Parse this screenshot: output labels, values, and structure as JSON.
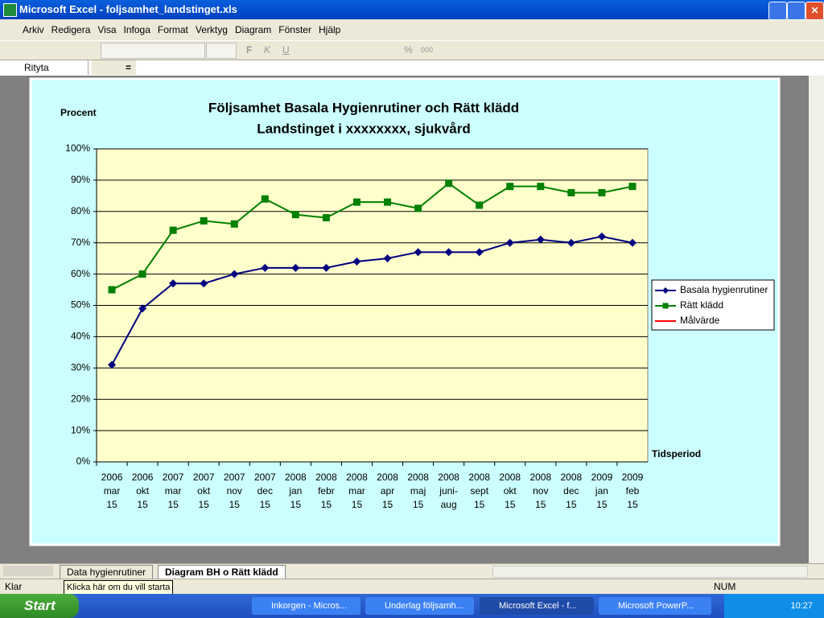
{
  "window_title": "Microsoft Excel - foljsamhet_landstinget.xls",
  "menu": [
    "Arkiv",
    "Redigera",
    "Visa",
    "Infoga",
    "Format",
    "Verktyg",
    "Diagram",
    "Fönster",
    "Hjälp"
  ],
  "toolbar": {
    "buttons": [
      "F",
      "K",
      "U",
      "%",
      "000"
    ]
  },
  "formula_bar": {
    "name_box": "Rityta",
    "equals": "="
  },
  "sheet_tabs": [
    "Data hygienrutiner",
    "Diagram BH o Rätt klädd"
  ],
  "status_bar": {
    "ready": "Klar",
    "num": "NUM"
  },
  "tooltip": "Klicka här om du vill starta",
  "taskbar": {
    "start": "Start",
    "items": [
      "Inkorgen - Micros...",
      "Underlag följsamh...",
      "Microsoft Excel - f...",
      "Microsoft PowerP..."
    ],
    "clock": "10:27"
  },
  "chart_data": {
    "type": "line",
    "title": [
      "Följsamhet Basala Hygienrutiner och Rätt klädd",
      "Landstinget i xxxxxxxx, sjukvård"
    ],
    "y_label": "Procent",
    "x_label": "Tidsperiod",
    "categories": [
      [
        "2006",
        "mar",
        "15"
      ],
      [
        "2006",
        "okt",
        "15"
      ],
      [
        "2007",
        "mar",
        "15"
      ],
      [
        "2007",
        "okt",
        "15"
      ],
      [
        "2007",
        "nov",
        "15"
      ],
      [
        "2007",
        "dec",
        "15"
      ],
      [
        "2008",
        "jan",
        "15"
      ],
      [
        "2008",
        "febr",
        "15"
      ],
      [
        "2008",
        "mar",
        "15"
      ],
      [
        "2008",
        "apr",
        "15"
      ],
      [
        "2008",
        "maj",
        "15"
      ],
      [
        "2008",
        "juni-",
        "aug"
      ],
      [
        "2008",
        "sept",
        "15"
      ],
      [
        "2008",
        "okt",
        "15"
      ],
      [
        "2008",
        "nov",
        "15"
      ],
      [
        "2008",
        "dec",
        "15"
      ],
      [
        "2009",
        "jan",
        "15"
      ],
      [
        "2009",
        "feb",
        "15"
      ]
    ],
    "series": [
      {
        "name": "Basala hygienrutiner",
        "color": "#000080",
        "marker": "diamond",
        "values": [
          31,
          49,
          57,
          57,
          60,
          62,
          62,
          62,
          64,
          65,
          67,
          67,
          67,
          70,
          71,
          70,
          72,
          70
        ]
      },
      {
        "name": "Rätt klädd",
        "color": "#008000",
        "marker": "square",
        "values": [
          55,
          60,
          74,
          77,
          76,
          84,
          79,
          78,
          83,
          83,
          81,
          89,
          82,
          88,
          88,
          86,
          86,
          88
        ]
      },
      {
        "name": "Målvärde",
        "color": "#ff0000",
        "marker": "none",
        "values": [
          null,
          null,
          null,
          null,
          null,
          null,
          null,
          null,
          null,
          null,
          null,
          null,
          null,
          null,
          null,
          null,
          null,
          null
        ]
      }
    ],
    "ylim": [
      0,
      100
    ],
    "yticks": [
      {
        "value": 0,
        "label": "0%"
      },
      {
        "value": 10,
        "label": "10%"
      },
      {
        "value": 20,
        "label": "20%"
      },
      {
        "value": 30,
        "label": "30%"
      },
      {
        "value": 40,
        "label": "40%"
      },
      {
        "value": 50,
        "label": "50%"
      },
      {
        "value": 60,
        "label": "60%"
      },
      {
        "value": 70,
        "label": "70%"
      },
      {
        "value": 80,
        "label": "80%"
      },
      {
        "value": 90,
        "label": "90%"
      },
      {
        "value": 100,
        "label": "100%"
      }
    ],
    "grid": true,
    "legend": "right"
  }
}
